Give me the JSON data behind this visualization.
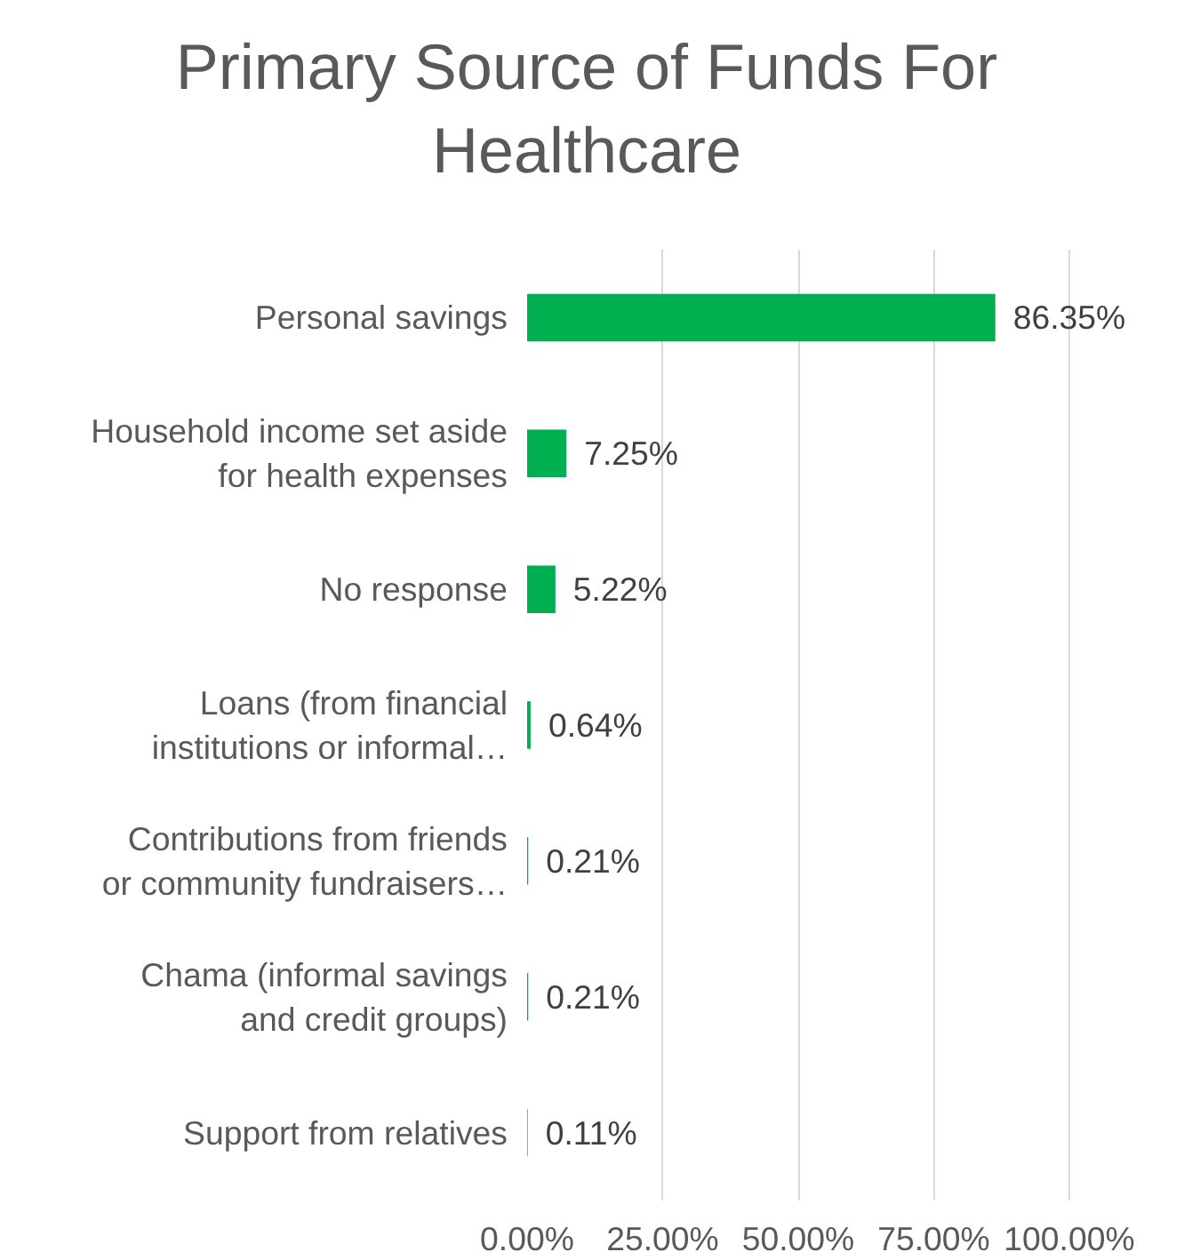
{
  "chart_data": {
    "type": "bar",
    "orientation": "horizontal",
    "title": "Primary Source of Funds For Healthcare",
    "categories": [
      "Personal savings",
      "Household income set aside for health expenses",
      "No response",
      "Loans (from financial institutions or informal…",
      "Contributions from friends or community fundraisers…",
      "Chama (informal savings and credit groups)",
      "Support from relatives"
    ],
    "values": [
      86.35,
      7.25,
      5.22,
      0.64,
      0.21,
      0.21,
      0.11
    ],
    "value_labels": [
      "86.35%",
      "7.25%",
      "5.22%",
      "0.64%",
      "0.21%",
      "0.21%",
      "0.11%"
    ],
    "color": "#00b050",
    "xlim": [
      0,
      100
    ],
    "xticks": [
      {
        "value": 0,
        "label": "0.00%"
      },
      {
        "value": 25,
        "label": "25.00%"
      },
      {
        "value": 50,
        "label": "50.00%"
      },
      {
        "value": 75,
        "label": "75.00%"
      },
      {
        "value": 100,
        "label": "100.00%"
      }
    ],
    "grid": "x"
  }
}
